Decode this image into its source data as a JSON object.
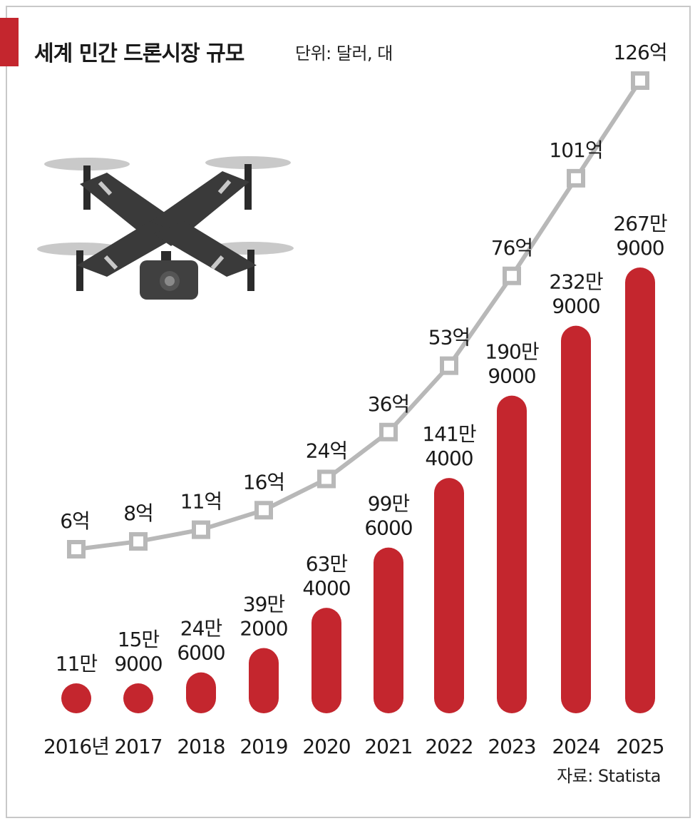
{
  "header": {
    "title": "세계 민간 드론시장 규모",
    "unit": "단위: 달러, 대"
  },
  "source": "자료: Statista",
  "colors": {
    "accent": "#c4262e",
    "bar": "#c4262e",
    "line": "#b8b8b8",
    "text": "#1a1a1a"
  },
  "illustration": "drone-icon",
  "chart_data": {
    "type": "bar",
    "categories": [
      "2016년",
      "2017",
      "2018",
      "2019",
      "2020",
      "2021",
      "2022",
      "2023",
      "2024",
      "2025"
    ],
    "series": [
      {
        "type": "bar",
        "values": [
          110000,
          159000,
          246000,
          392000,
          634000,
          996000,
          1414000,
          1909000,
          2329000,
          2679000
        ],
        "labels": [
          [
            "11만"
          ],
          [
            "15만",
            "9000"
          ],
          [
            "24만",
            "6000"
          ],
          [
            "39만",
            "2000"
          ],
          [
            "63만",
            "4000"
          ],
          [
            "99만",
            "6000"
          ],
          [
            "141만",
            "4000"
          ],
          [
            "190만",
            "9000"
          ],
          [
            "232만",
            "9000"
          ],
          [
            "267만",
            "9000"
          ]
        ]
      },
      {
        "type": "line",
        "values": [
          6,
          8,
          11,
          16,
          24,
          36,
          53,
          76,
          101,
          126
        ],
        "labels": [
          "6억",
          "8억",
          "11억",
          "16억",
          "24억",
          "36억",
          "53억",
          "76억",
          "101억",
          "126억"
        ]
      }
    ],
    "grid": false,
    "legend": "none"
  }
}
